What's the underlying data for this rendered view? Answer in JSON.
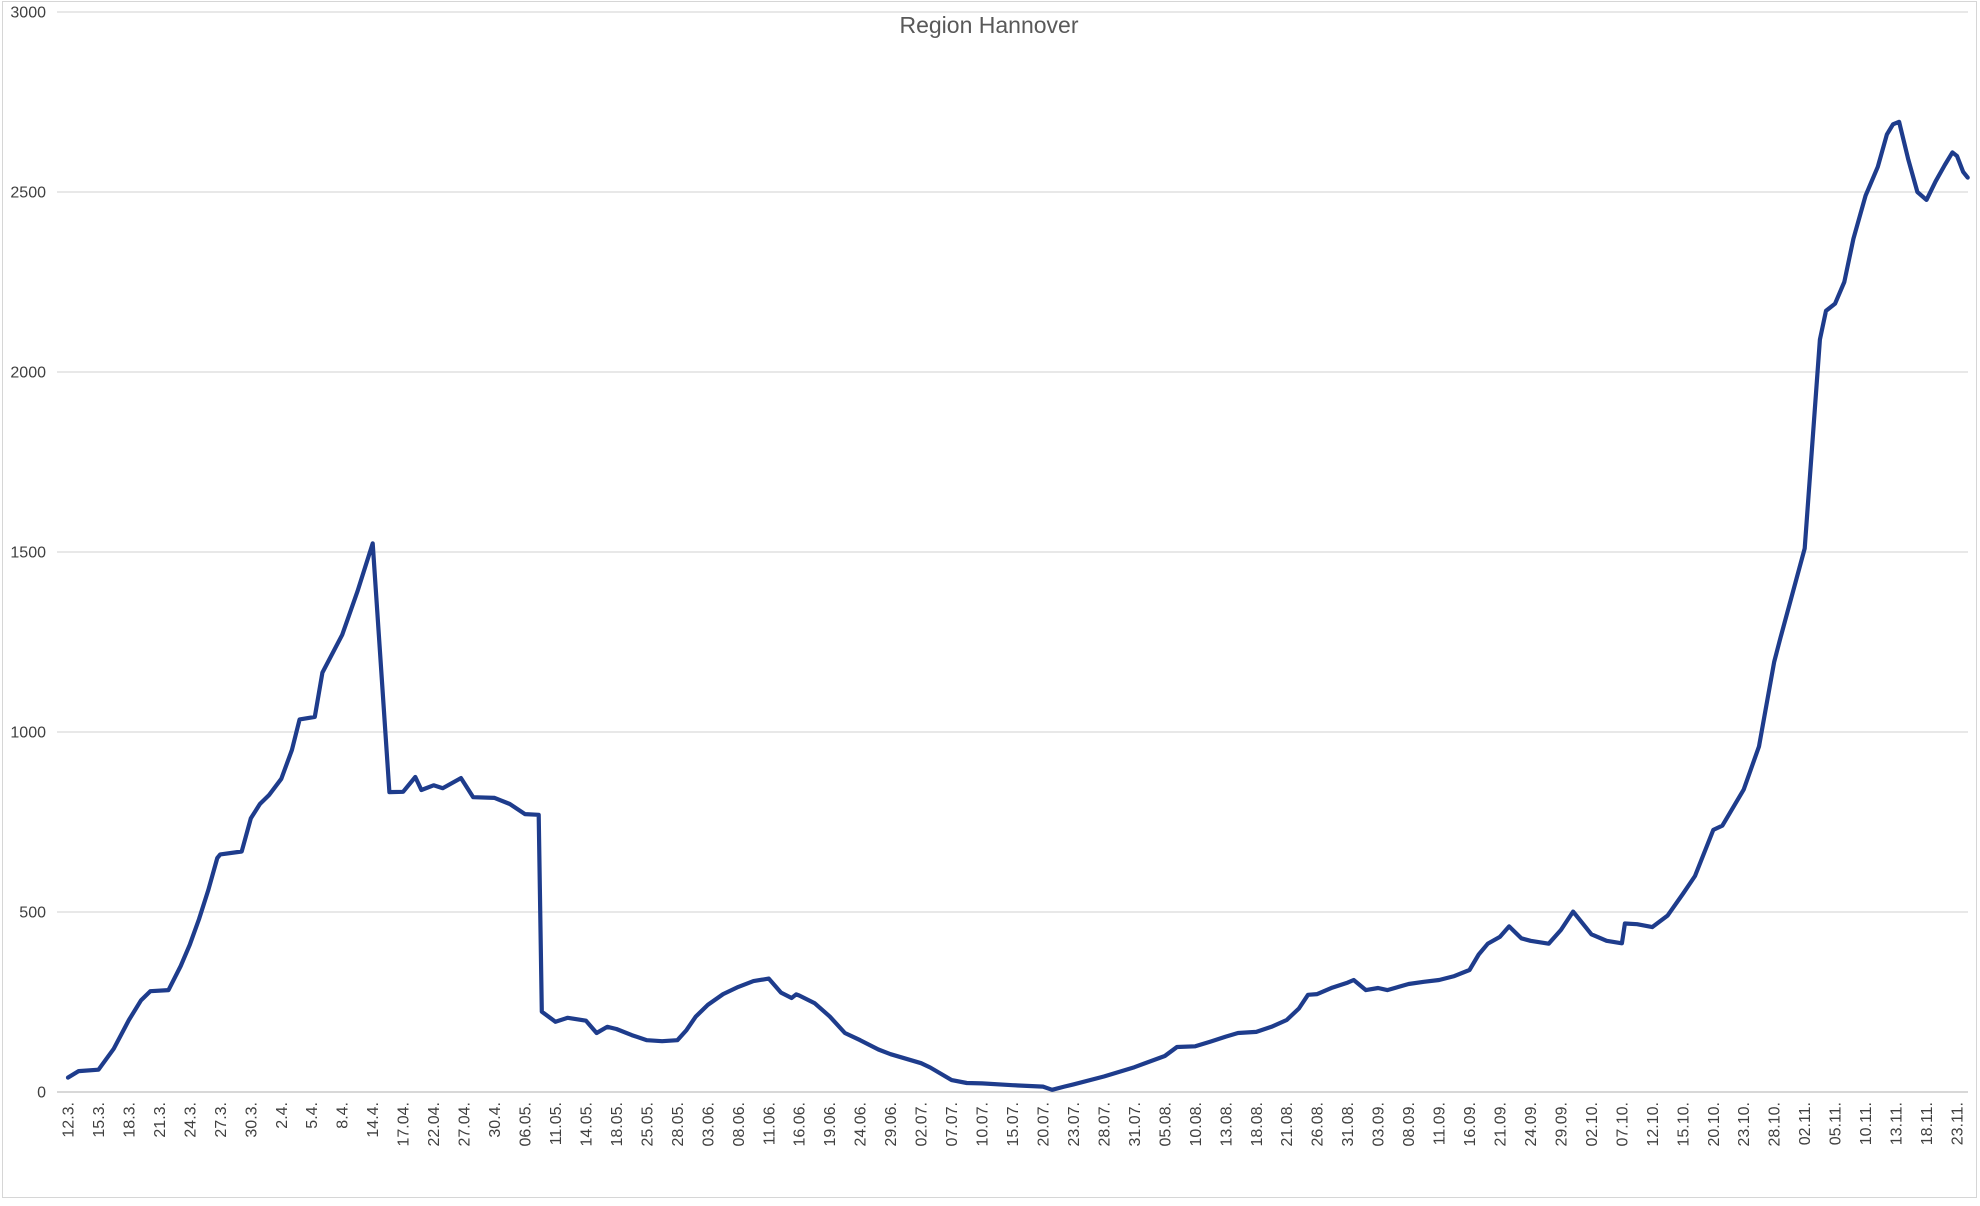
{
  "chart_data": {
    "type": "line",
    "title": "Region Hannover",
    "xlabel": "",
    "ylabel": "",
    "ylim": [
      0,
      3000
    ],
    "y_tick_step": 500,
    "y_ticks": [
      0,
      500,
      1000,
      1500,
      2000,
      2500,
      3000
    ],
    "grid": "horizontal",
    "legend": "none",
    "line_color": "#1e3c8c",
    "grid_color": "#d9d9d9",
    "axis_line_color": "#c0c0c0",
    "tick_label_color": "#404040",
    "title_color": "#595959",
    "categories": [
      "12.3.",
      "15.3.",
      "18.3.",
      "21.3.",
      "24.3.",
      "27.3.",
      "30.3.",
      "2.4.",
      "5.4.",
      "8.4.",
      "14.4.",
      "17.04.",
      "22.04.",
      "27.04.",
      "30.4.",
      "06.05.",
      "11.05.",
      "14.05.",
      "18.05.",
      "25.05.",
      "28.05.",
      "03.06.",
      "08.06.",
      "11.06.",
      "16.06.",
      "19.06.",
      "24.06.",
      "29.06.",
      "02.07.",
      "07.07.",
      "10.07.",
      "15.07.",
      "20.07.",
      "23.07.",
      "28.07.",
      "31.07.",
      "05.08.",
      "10.08.",
      "13.08.",
      "18.08.",
      "21.08.",
      "26.08.",
      "31.08.",
      "03.09.",
      "08.09.",
      "11.09.",
      "16.09.",
      "21.09.",
      "24.09.",
      "29.09.",
      "02.10.",
      "07.10.",
      "12.10.",
      "15.10.",
      "20.10.",
      "23.10.",
      "28.10.",
      "02.11.",
      "05.11.",
      "10.11.",
      "13.11.",
      "18.11.",
      "23.11."
    ],
    "series": [
      {
        "name": "Region Hannover",
        "points_note": "pairs of [category-index (fractional = between labeled dates), value]",
        "points": [
          [
            0,
            40
          ],
          [
            0.35,
            58
          ],
          [
            1,
            62
          ],
          [
            1.5,
            120
          ],
          [
            2,
            200
          ],
          [
            2.4,
            255
          ],
          [
            2.7,
            280
          ],
          [
            3.3,
            283
          ],
          [
            3.7,
            350
          ],
          [
            4,
            410
          ],
          [
            4.3,
            480
          ],
          [
            4.6,
            560
          ],
          [
            4.9,
            650
          ],
          [
            5,
            660
          ],
          [
            5.7,
            668
          ],
          [
            6,
            760
          ],
          [
            6.3,
            800
          ],
          [
            6.6,
            825
          ],
          [
            7,
            870
          ],
          [
            7.35,
            950
          ],
          [
            7.6,
            1035
          ],
          [
            8.1,
            1042
          ],
          [
            8.35,
            1165
          ],
          [
            9,
            1270
          ],
          [
            9.5,
            1390
          ],
          [
            10,
            1524
          ],
          [
            10.55,
            833
          ],
          [
            11,
            834
          ],
          [
            11.4,
            875
          ],
          [
            11.6,
            839
          ],
          [
            12,
            852
          ],
          [
            12.3,
            844
          ],
          [
            12.9,
            872
          ],
          [
            13.3,
            819
          ],
          [
            14,
            817
          ],
          [
            14.5,
            800
          ],
          [
            15,
            772
          ],
          [
            15.45,
            770
          ],
          [
            15.55,
            223
          ],
          [
            16,
            195
          ],
          [
            16.4,
            206
          ],
          [
            17,
            198
          ],
          [
            17.35,
            164
          ],
          [
            17.7,
            181
          ],
          [
            18,
            175
          ],
          [
            18.5,
            158
          ],
          [
            19,
            144
          ],
          [
            19.5,
            141
          ],
          [
            20,
            144
          ],
          [
            20.3,
            172
          ],
          [
            20.6,
            209
          ],
          [
            21,
            242
          ],
          [
            21.5,
            272
          ],
          [
            22,
            292
          ],
          [
            22.5,
            308
          ],
          [
            23,
            315
          ],
          [
            23.4,
            276
          ],
          [
            23.75,
            261
          ],
          [
            23.9,
            271
          ],
          [
            24,
            268
          ],
          [
            24.5,
            247
          ],
          [
            25,
            210
          ],
          [
            25.5,
            164
          ],
          [
            26,
            144
          ],
          [
            26.6,
            118
          ],
          [
            27,
            105
          ],
          [
            28,
            80
          ],
          [
            28.3,
            68
          ],
          [
            29,
            33
          ],
          [
            29.5,
            25
          ],
          [
            30,
            24
          ],
          [
            31,
            19
          ],
          [
            32,
            15
          ],
          [
            32.3,
            6
          ],
          [
            32.7,
            15
          ],
          [
            33,
            21
          ],
          [
            34,
            43
          ],
          [
            35,
            69
          ],
          [
            36,
            100
          ],
          [
            36.4,
            125
          ],
          [
            37,
            127
          ],
          [
            37.5,
            140
          ],
          [
            38,
            154
          ],
          [
            38.4,
            164
          ],
          [
            39,
            167
          ],
          [
            39.5,
            181
          ],
          [
            40,
            200
          ],
          [
            40.4,
            232
          ],
          [
            40.7,
            270
          ],
          [
            41,
            272
          ],
          [
            41.5,
            290
          ],
          [
            42,
            304
          ],
          [
            42.2,
            311
          ],
          [
            42.6,
            283
          ],
          [
            43,
            289
          ],
          [
            43.3,
            283
          ],
          [
            44,
            300
          ],
          [
            44.5,
            306
          ],
          [
            45,
            311
          ],
          [
            45.5,
            322
          ],
          [
            46,
            339
          ],
          [
            46.3,
            382
          ],
          [
            46.6,
            412
          ],
          [
            47,
            431
          ],
          [
            47.3,
            460
          ],
          [
            47.7,
            427
          ],
          [
            48,
            420
          ],
          [
            48.6,
            412
          ],
          [
            49,
            450
          ],
          [
            49.4,
            501
          ],
          [
            50,
            438
          ],
          [
            50.5,
            420
          ],
          [
            51,
            413
          ],
          [
            51.1,
            468
          ],
          [
            51.5,
            466
          ],
          [
            52,
            458
          ],
          [
            52.5,
            490
          ],
          [
            53,
            550
          ],
          [
            53.4,
            600
          ],
          [
            54,
            728
          ],
          [
            54.3,
            740
          ],
          [
            55,
            840
          ],
          [
            55.5,
            960
          ],
          [
            56,
            1195
          ],
          [
            56.2,
            1260
          ],
          [
            57,
            1510
          ],
          [
            57.5,
            2090
          ],
          [
            57.7,
            2170
          ],
          [
            58,
            2190
          ],
          [
            58.3,
            2250
          ],
          [
            58.6,
            2370
          ],
          [
            59,
            2490
          ],
          [
            59.4,
            2570
          ],
          [
            59.7,
            2660
          ],
          [
            59.9,
            2688
          ],
          [
            60.1,
            2695
          ],
          [
            60.4,
            2590
          ],
          [
            60.7,
            2500
          ],
          [
            61,
            2478
          ],
          [
            61.3,
            2530
          ],
          [
            61.6,
            2575
          ],
          [
            61.85,
            2610
          ],
          [
            62,
            2600
          ],
          [
            62.2,
            2556
          ],
          [
            62.35,
            2540
          ]
        ]
      }
    ]
  }
}
